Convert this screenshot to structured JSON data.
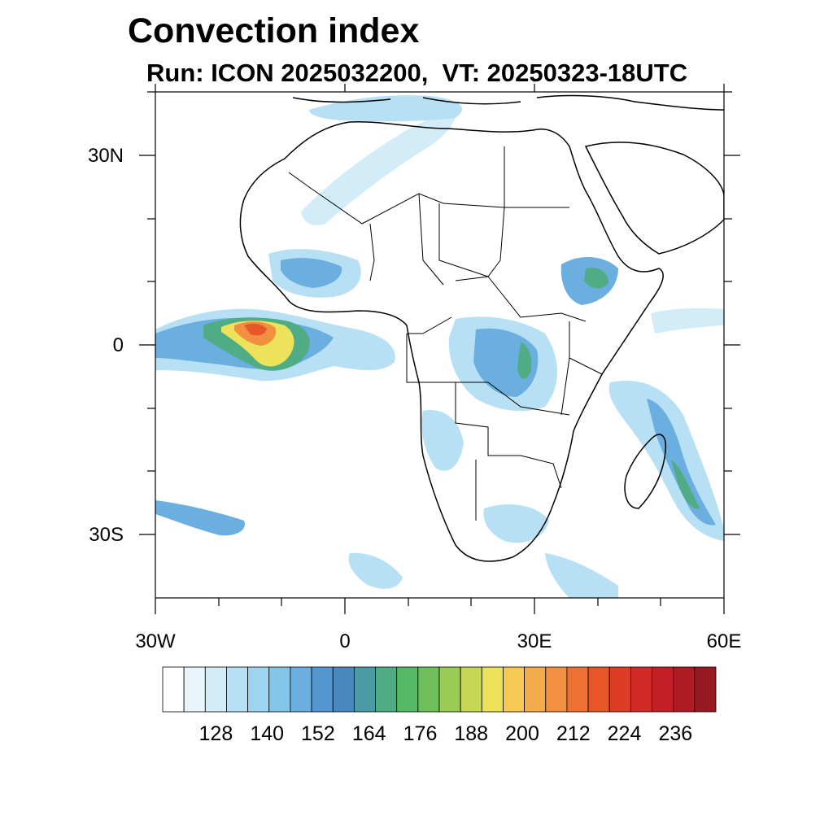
{
  "title": "Convection index",
  "subtitle": "Run: ICON 2025032200,  VT: 20250323-18UTC",
  "axes": {
    "lat_labels": [
      "30N",
      "0",
      "30S"
    ],
    "lon_labels": [
      "30W",
      "0",
      "30E",
      "60E"
    ],
    "lon_range": [
      -30,
      60
    ],
    "lat_range": [
      -40,
      40
    ]
  },
  "colorbar": {
    "labels": [
      "128",
      "140",
      "152",
      "164",
      "176",
      "188",
      "200",
      "212",
      "224",
      "236"
    ],
    "colors": [
      "#ffffff",
      "#e9f5fb",
      "#d2ecf8",
      "#b8e0f4",
      "#9ed4f0",
      "#84c5ea",
      "#6aafe0",
      "#5596cf",
      "#4a87bd",
      "#4b9aa4",
      "#4fac84",
      "#55b865",
      "#6fc05a",
      "#9acb55",
      "#c6d655",
      "#ece35a",
      "#f6c957",
      "#f4ac4c",
      "#f28f40",
      "#ee7032",
      "#e75629",
      "#de3d25",
      "#d22a26",
      "#c21f27",
      "#ae1b25",
      "#971a22"
    ]
  },
  "map_symbols": {
    "fill_colors": {
      "low": "#b8e0f4",
      "mid": "#6aafe0",
      "green": "#4fac84",
      "yellow": "#ece35a",
      "orange": "#f28f40",
      "red": "#e75629"
    }
  }
}
